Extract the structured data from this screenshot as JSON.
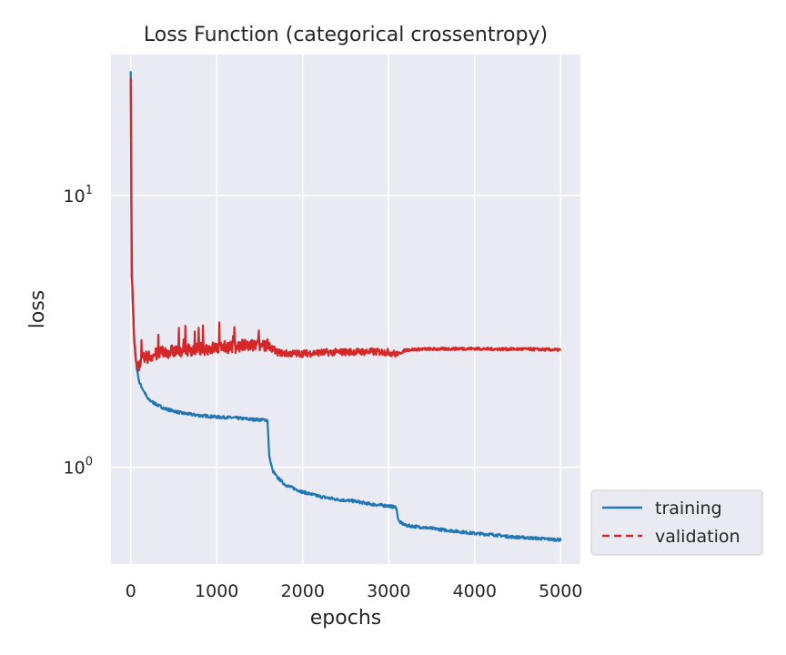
{
  "chart_data": {
    "type": "line",
    "title": "Loss Function (categorical crossentropy)",
    "xlabel": "epochs",
    "ylabel": "loss",
    "xlim": [
      -230,
      5230
    ],
    "ylim": [
      0.44,
      33
    ],
    "y_scale": "log",
    "grid": true,
    "legend_position": "lower-right-outside",
    "x_ticks": [
      {
        "value": 0,
        "label": "0"
      },
      {
        "value": 1000,
        "label": "1000"
      },
      {
        "value": 2000,
        "label": "2000"
      },
      {
        "value": 3000,
        "label": "3000"
      },
      {
        "value": 4000,
        "label": "4000"
      },
      {
        "value": 5000,
        "label": "5000"
      }
    ],
    "y_ticks": [
      {
        "value": 1,
        "base": "10",
        "exponent": "0"
      },
      {
        "value": 10,
        "base": "10",
        "exponent": "1"
      }
    ],
    "series": [
      {
        "name": "training",
        "color": "#1f77b4",
        "dash": "solid",
        "points": [
          [
            0,
            29
          ],
          [
            5,
            15
          ],
          [
            10,
            7
          ],
          [
            20,
            4.2
          ],
          [
            40,
            3
          ],
          [
            70,
            2.3
          ],
          [
            100,
            2.05
          ],
          [
            200,
            1.78
          ],
          [
            300,
            1.7
          ],
          [
            400,
            1.64
          ],
          [
            500,
            1.61
          ],
          [
            600,
            1.58
          ],
          [
            800,
            1.55
          ],
          [
            1000,
            1.53
          ],
          [
            1200,
            1.52
          ],
          [
            1400,
            1.5
          ],
          [
            1590,
            1.49
          ],
          [
            1600,
            1.3
          ],
          [
            1610,
            1.1
          ],
          [
            1650,
            0.97
          ],
          [
            1700,
            0.92
          ],
          [
            1800,
            0.86
          ],
          [
            2000,
            0.81
          ],
          [
            2200,
            0.78
          ],
          [
            2400,
            0.76
          ],
          [
            2600,
            0.75
          ],
          [
            2800,
            0.73
          ],
          [
            3000,
            0.72
          ],
          [
            3090,
            0.71
          ],
          [
            3100,
            0.67
          ],
          [
            3120,
            0.63
          ],
          [
            3200,
            0.61
          ],
          [
            3400,
            0.6
          ],
          [
            3600,
            0.59
          ],
          [
            3800,
            0.58
          ],
          [
            4000,
            0.57
          ],
          [
            4200,
            0.565
          ],
          [
            4400,
            0.555
          ],
          [
            4600,
            0.55
          ],
          [
            4800,
            0.545
          ],
          [
            5000,
            0.54
          ]
        ]
      },
      {
        "name": "validation",
        "color": "#d62728",
        "dash": "dashed",
        "points": [
          [
            0,
            27
          ],
          [
            5,
            12
          ],
          [
            10,
            5
          ],
          [
            20,
            4.6
          ],
          [
            40,
            2.9
          ],
          [
            60,
            2.45
          ],
          [
            80,
            2.35
          ],
          [
            100,
            2.4
          ],
          [
            150,
            2.5
          ],
          [
            200,
            2.55
          ],
          [
            300,
            2.6
          ],
          [
            400,
            2.65
          ],
          [
            600,
            2.7
          ],
          [
            800,
            2.72
          ],
          [
            1000,
            2.75
          ],
          [
            1200,
            2.78
          ],
          [
            1400,
            2.8
          ],
          [
            1600,
            2.8
          ],
          [
            1700,
            2.65
          ],
          [
            1800,
            2.62
          ],
          [
            2000,
            2.62
          ],
          [
            2200,
            2.64
          ],
          [
            2400,
            2.65
          ],
          [
            2600,
            2.66
          ],
          [
            2800,
            2.66
          ],
          [
            3000,
            2.65
          ],
          [
            3100,
            2.6
          ],
          [
            3200,
            2.7
          ],
          [
            3400,
            2.72
          ],
          [
            3600,
            2.72
          ],
          [
            3800,
            2.73
          ],
          [
            4000,
            2.73
          ],
          [
            4200,
            2.72
          ],
          [
            4400,
            2.72
          ],
          [
            4600,
            2.72
          ],
          [
            4800,
            2.71
          ],
          [
            5000,
            2.7
          ]
        ]
      }
    ]
  }
}
